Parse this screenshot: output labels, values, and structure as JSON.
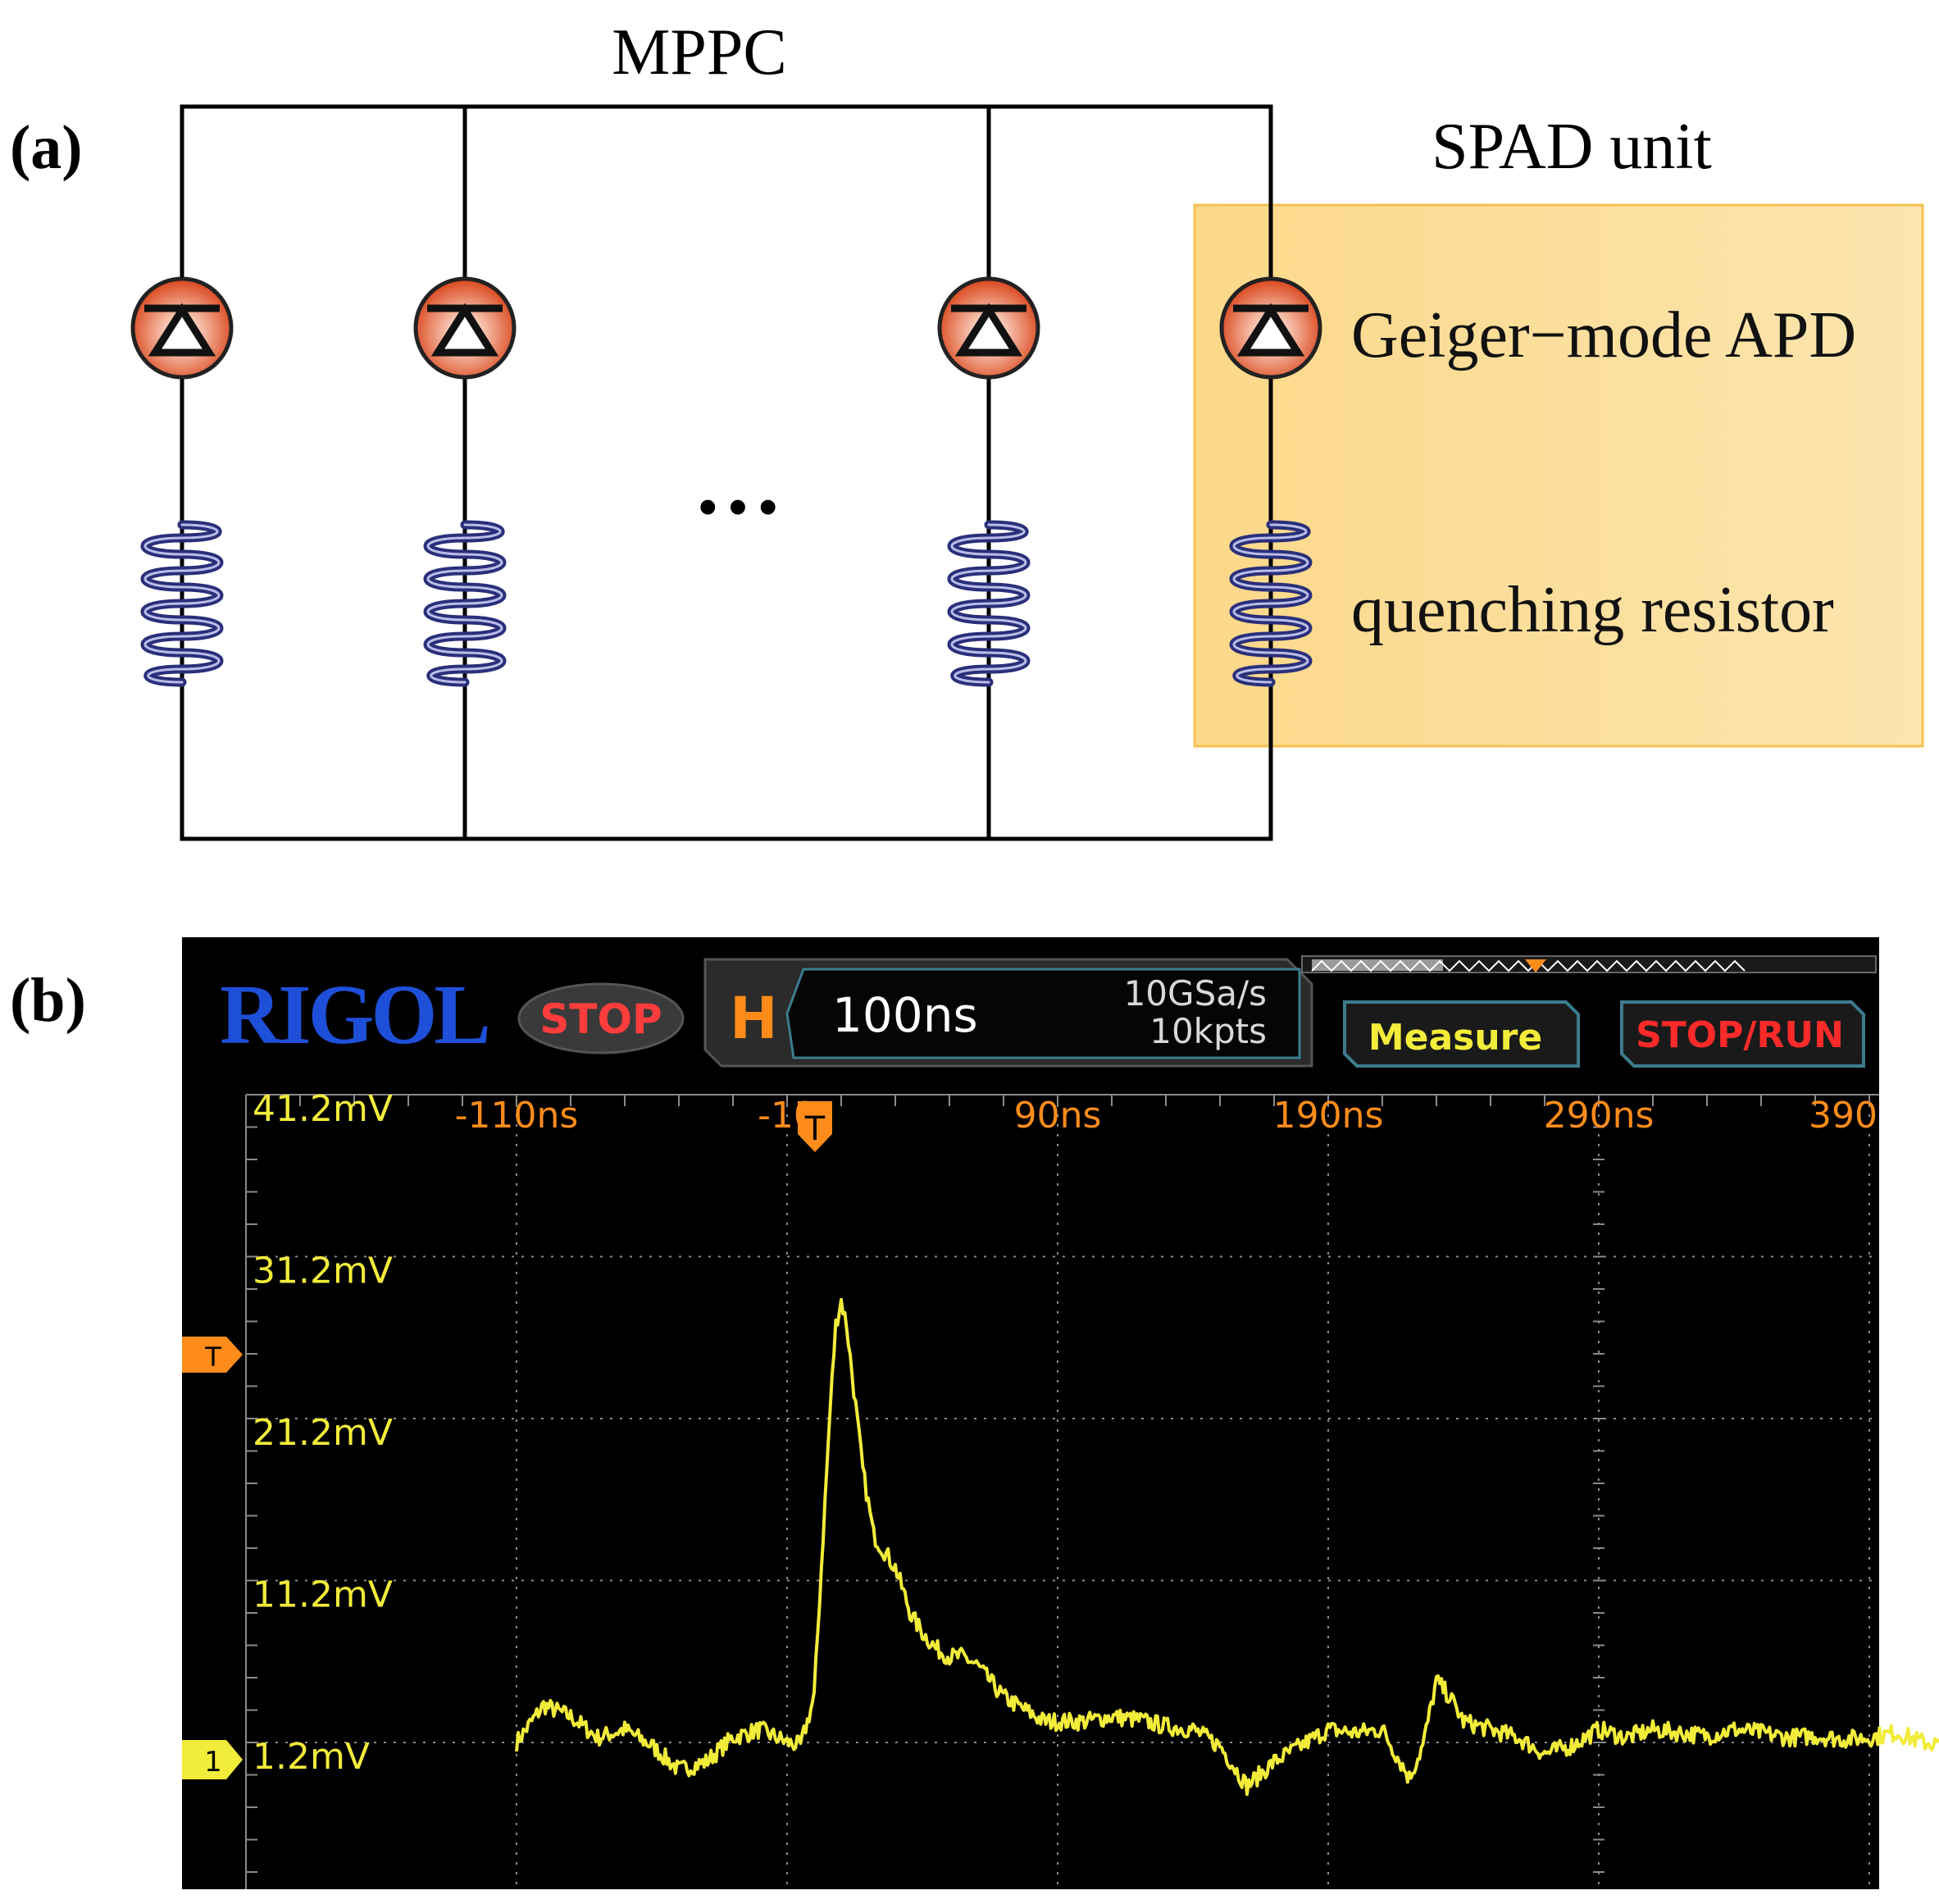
{
  "panel_a": {
    "label": "(a)",
    "title": "MPPC",
    "ellipsis": "···",
    "spad_title": "SPAD unit",
    "apd_label": "Geiger−mode APD",
    "resistor_label": "quenching resistor",
    "colors": {
      "highlight": "#fdd98f",
      "diode": "#e0532b",
      "resistor": "#2a2f7a"
    }
  },
  "panel_b": {
    "label": "(b)",
    "brand": "RIGOL",
    "status": "STOP",
    "h_letter": "H",
    "timebase": "100ns",
    "sample_rate": "10GSa/s",
    "memory_depth": "10kpts",
    "measure_button": "Measure",
    "stop_run_button": "STOP/RUN",
    "time_ticks": [
      "-110ns",
      "-10",
      "90ns",
      "190ns",
      "290ns",
      "390"
    ],
    "volt_ticks": [
      "41.2mV",
      "31.2mV",
      "21.2mV",
      "11.2mV",
      "1.2mV"
    ],
    "trigger_marker": "T",
    "channel_marker": "1",
    "colors": {
      "trace": "#f2ec3a",
      "grid": "#8a8a8a",
      "accent": "#ff8c1a",
      "brand": "#1e4fd8",
      "stop": "#ff3d3d"
    },
    "chart_data": {
      "type": "line",
      "x_unit": "ns",
      "y_unit": "mV",
      "xlim": [
        -110,
        500
      ],
      "ylim": [
        -8.8,
        41.2
      ],
      "x": [
        -110,
        -100,
        -90,
        -80,
        -70,
        -60,
        -50,
        -40,
        -30,
        -20,
        -10,
        -5,
        0,
        2,
        4,
        6,
        8,
        10,
        12,
        14,
        16,
        18,
        20,
        22,
        24,
        26,
        28,
        30,
        33,
        36,
        40,
        45,
        50,
        55,
        60,
        65,
        70,
        75,
        80,
        85,
        90,
        100,
        110,
        120,
        130,
        140,
        150,
        160,
        170,
        180,
        190,
        200,
        210,
        220,
        225,
        230,
        235,
        240,
        250,
        260,
        270,
        280,
        290,
        300,
        310,
        320,
        330,
        340,
        350,
        360,
        370,
        380,
        390,
        400,
        410,
        420,
        430,
        440,
        450,
        460,
        470,
        480,
        490,
        500
      ],
      "y": [
        1.2,
        3.5,
        2.8,
        1.5,
        2.0,
        1.0,
        -0.5,
        0.0,
        1.5,
        2.0,
        1.2,
        1.0,
        4.0,
        10.0,
        16.0,
        22.0,
        27.0,
        28.5,
        27.0,
        24.0,
        21.0,
        18.0,
        16.0,
        14.0,
        13.5,
        13.0,
        12.5,
        12.0,
        10.5,
        9.0,
        8.0,
        7.0,
        6.5,
        6.5,
        6.0,
        5.0,
        4.0,
        3.5,
        3.0,
        2.5,
        2.5,
        2.5,
        2.8,
        2.6,
        2.2,
        2.0,
        1.0,
        -1.5,
        0.0,
        1.0,
        2.0,
        1.8,
        2.0,
        -1.0,
        1.0,
        5.0,
        4.0,
        2.5,
        2.0,
        1.5,
        0.5,
        1.0,
        2.0,
        1.5,
        2.0,
        1.8,
        1.6,
        2.0,
        1.8,
        1.5,
        1.6,
        1.4,
        1.5,
        1.8,
        1.2,
        1.0,
        1.6,
        1.5,
        1.8,
        1.5,
        1.3,
        1.5,
        1.4,
        1.2
      ]
    }
  }
}
